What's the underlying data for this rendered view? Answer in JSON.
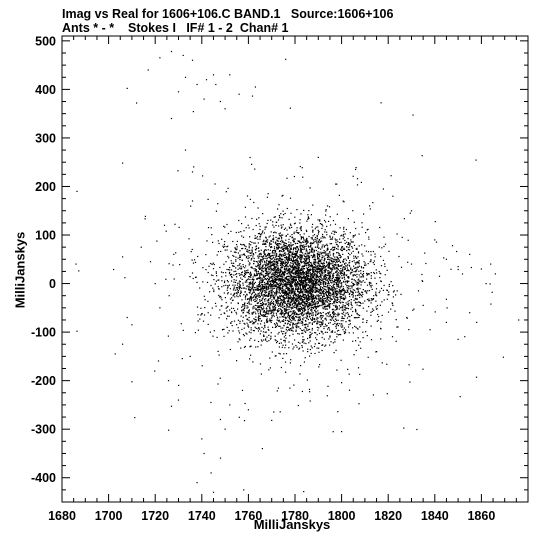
{
  "chart_data": {
    "type": "scatter",
    "title_line1": "Imag vs Real for 1606+106.C BAND.1   Source:1606+106",
    "title_line2": "Ants * - *    Stokes I   IF# 1 - 2  Chan# 1",
    "xlabel": "MilliJanskys",
    "ylabel": "MilliJanskys",
    "xlim": [
      1680,
      1880
    ],
    "ylim": [
      -450,
      510
    ],
    "x_ticks": [
      1680,
      1700,
      1720,
      1740,
      1760,
      1780,
      1800,
      1820,
      1840,
      1860
    ],
    "y_ticks": [
      500,
      400,
      300,
      200,
      100,
      0,
      -100,
      -200,
      -300,
      -400
    ],
    "grid": false,
    "cluster": {
      "center_x": 1781,
      "center_y": 0,
      "core_count": 5200,
      "core_spread_x": 15,
      "core_spread_y": 55,
      "halo_count": 300,
      "halo_spread_x": 40,
      "halo_spread_y": 150
    },
    "outliers": [
      [
        1686,
        40
      ],
      [
        1706,
        55
      ],
      [
        1707,
        12
      ],
      [
        1706,
        -125
      ],
      [
        1708,
        -70
      ],
      [
        1710,
        -85
      ],
      [
        1712,
        372
      ],
      [
        1708,
        402
      ],
      [
        1718,
        45
      ],
      [
        1720,
        0
      ],
      [
        1722,
        -50
      ],
      [
        1717,
        440
      ],
      [
        1722,
        465
      ],
      [
        1727,
        478
      ],
      [
        1732,
        470
      ],
      [
        1736,
        460
      ],
      [
        1745,
        430
      ],
      [
        1748,
        375
      ],
      [
        1727,
        340
      ],
      [
        1730,
        395
      ],
      [
        1738,
        410
      ],
      [
        1742,
        420
      ],
      [
        1746,
        410
      ],
      [
        1752,
        430
      ],
      [
        1733,
        275
      ],
      [
        1736,
        230
      ],
      [
        1728,
        60
      ],
      [
        1730,
        -240
      ],
      [
        1735,
        -150
      ],
      [
        1736,
        170
      ],
      [
        1740,
        -320
      ],
      [
        1741,
        -350
      ],
      [
        1744,
        -390
      ],
      [
        1738,
        -410
      ],
      [
        1745,
        -430
      ],
      [
        1758,
        -425
      ],
      [
        1748,
        -280
      ],
      [
        1750,
        -300
      ],
      [
        1766,
        -340
      ],
      [
        1806,
        235
      ],
      [
        1822,
        180
      ],
      [
        1830,
        150
      ],
      [
        1840,
        90
      ],
      [
        1845,
        50
      ],
      [
        1850,
        35
      ],
      [
        1855,
        60
      ],
      [
        1860,
        30
      ],
      [
        1862,
        0
      ],
      [
        1864,
        40
      ],
      [
        1866,
        20
      ],
      [
        1876,
        -75
      ],
      [
        1845,
        -80
      ],
      [
        1850,
        -115
      ],
      [
        1855,
        -60
      ],
      [
        1858,
        -80
      ],
      [
        1830,
        40
      ],
      [
        1833,
        -15
      ],
      [
        1815,
        0
      ],
      [
        1790,
        260
      ],
      [
        1800,
        -305
      ],
      [
        1776,
        462
      ],
      [
        1750,
        360
      ],
      [
        1756,
        390
      ],
      [
        1763,
        405
      ],
      [
        1741,
        380
      ],
      [
        1733,
        425
      ],
      [
        1835,
        -45
      ],
      [
        1842,
        15
      ],
      [
        1838,
        -95
      ],
      [
        1826,
        95
      ],
      [
        1828,
        -70
      ],
      [
        1724,
        120
      ],
      [
        1726,
        -25
      ],
      [
        1714,
        75
      ],
      [
        1752,
        -250
      ],
      [
        1760,
        -260
      ],
      [
        1808,
        -120
      ],
      [
        1812,
        160
      ]
    ]
  }
}
